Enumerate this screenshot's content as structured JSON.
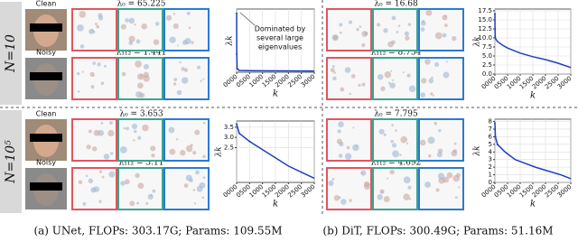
{
  "row_labels": [
    "N=10",
    "N=10⁵"
  ],
  "captions": [
    "(a) UNet, FLOPs: 303.17G; Params: 109.55M",
    "(b) DiT, FLOPs: 300.49G; Params: 51.16M"
  ],
  "panels": [
    {
      "clean_label": "Clean",
      "noisy_label": "Noisy",
      "top_lambda": "λ₀ = 65.225",
      "bottom_lambda": "λ₁₁₂ = 1.441"
    },
    {
      "top_lambda": "λ₀ = 16.68",
      "bottom_lambda": "λ₁₁₂ = 8.754"
    },
    {
      "clean_label": "Clean",
      "noisy_label": "Noisy",
      "top_lambda": "λ₀ = 3.653",
      "bottom_lambda": "λ₁₁₂ = 3.11"
    },
    {
      "top_lambda": "λ₀ = 7.795",
      "bottom_lambda": "λ₁₁₂ = 4.692"
    }
  ],
  "chart_data": [
    {
      "type": "line",
      "xlabel": "k",
      "ylabel": "λk",
      "grid": true,
      "color": "#1f3fbf",
      "annotation": [
        "Dominated by",
        "several large",
        "eigenvalues"
      ],
      "x": [
        0,
        5,
        20,
        100,
        500,
        1000,
        2000,
        3000
      ],
      "values": [
        65.225,
        20,
        4,
        2,
        1.8,
        1.6,
        1.5,
        1.4
      ],
      "xlim": [
        0,
        3000
      ],
      "ylim": [
        0,
        70
      ],
      "xticks": [
        {
          "value": 0,
          "label": "0000"
        },
        {
          "value": 500,
          "label": "0500"
        },
        1000,
        1500,
        2000,
        2500,
        3000
      ],
      "yticks": []
    },
    {
      "type": "line",
      "xlabel": "k",
      "ylabel": "λk",
      "grid": true,
      "color": "#1f3fbf",
      "x": [
        0,
        5,
        10,
        20,
        50,
        100,
        300,
        500,
        1000,
        1500,
        2000,
        2500,
        3000
      ],
      "values": [
        16.68,
        12.5,
        10.5,
        10,
        9.5,
        9,
        8,
        7.2,
        5.8,
        4.8,
        4,
        3,
        1.8
      ],
      "xlim": [
        0,
        3000
      ],
      "ylim": [
        0,
        18
      ],
      "xticks": [
        {
          "value": 0,
          "label": "0000"
        },
        {
          "value": 500,
          "label": "0500"
        },
        1000,
        1500,
        2000,
        2500,
        3000
      ],
      "yticks": [
        {
          "value": 0,
          "label": "0.0"
        },
        2.5,
        {
          "value": 5,
          "label": "5.0"
        },
        7.5,
        {
          "value": 10,
          "label": "10.0"
        },
        12.5,
        {
          "value": 15,
          "label": "15.0"
        },
        17.5
      ]
    },
    {
      "type": "line",
      "xlabel": "k",
      "ylabel": "λk",
      "grid": true,
      "color": "#1f3fbf",
      "x": [
        0,
        100,
        500,
        1000,
        1500,
        2000,
        2500,
        3000
      ],
      "values": [
        3.653,
        3.2,
        2.8,
        2.4,
        2.0,
        1.6,
        1.3,
        1.0
      ],
      "xlim": [
        0,
        3000
      ],
      "ylim": [
        0.8,
        3.8
      ],
      "xticks": [
        {
          "value": 0,
          "label": "0000"
        },
        {
          "value": 500,
          "label": "0500"
        },
        1000,
        1500,
        2000,
        2500,
        3000
      ],
      "yticks": [
        2.5,
        {
          "value": 3,
          "label": "3.0"
        },
        3.5
      ]
    },
    {
      "type": "line",
      "xlabel": "k",
      "ylabel": "λk",
      "grid": true,
      "color": "#1f3fbf",
      "x": [
        0,
        20,
        100,
        400,
        800,
        1200,
        1600,
        2100,
        2600,
        3000
      ],
      "values": [
        7.795,
        6,
        5,
        4,
        3,
        2.5,
        2,
        1.5,
        1,
        0.5
      ],
      "xlim": [
        0,
        3000
      ],
      "ylim": [
        0,
        8.3
      ],
      "xticks": [
        {
          "value": 0,
          "label": "0000"
        },
        {
          "value": 500,
          "label": "0500"
        },
        1000,
        1500,
        2000,
        2500,
        3000
      ],
      "yticks": [
        0,
        1,
        2,
        3,
        4,
        5,
        6,
        7,
        8
      ]
    }
  ]
}
